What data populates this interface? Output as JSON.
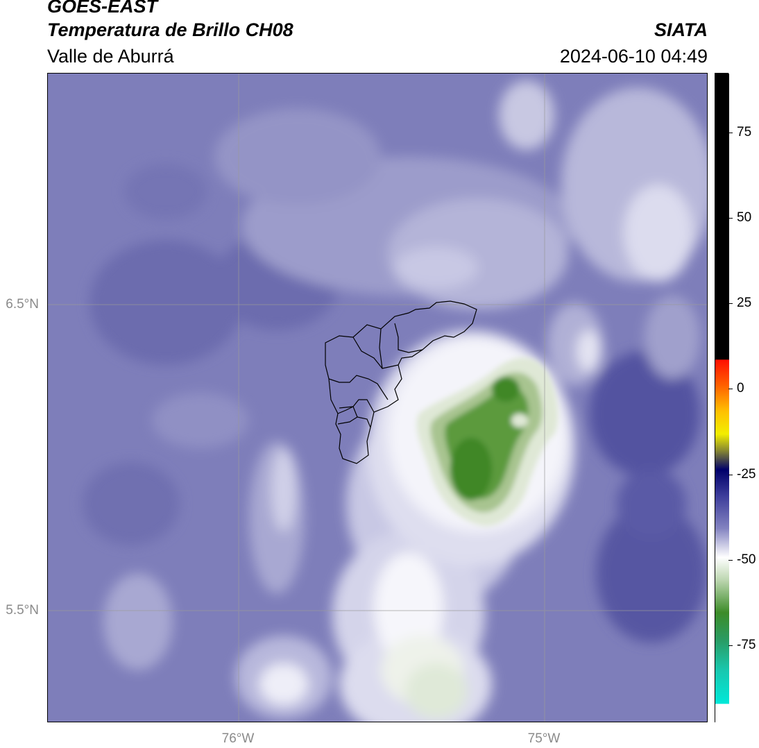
{
  "header": {
    "satellite": "GOES-EAST",
    "product": "Temperatura de Brillo CH08",
    "region": "Valle de Aburrá",
    "organization": "SIATA",
    "datetime": "2024-06-10 04:49"
  },
  "map": {
    "lat_labels": [
      "6.5°N",
      "5.5°N"
    ],
    "lon_labels": [
      "76°W",
      "75°W"
    ],
    "gridlines": true,
    "overlay": "municipality boundaries of Valle de Aburrá"
  },
  "colorbar": {
    "tick_labels": [
      "75",
      "50",
      "25",
      "0",
      "-25",
      "-50",
      "-75"
    ],
    "colors": {
      "warm": "#000000",
      "zero": "#ff2000",
      "yellow": "#ffee00",
      "navy": "#00006a",
      "slate": "#5a5aa8",
      "white": "#ffffff",
      "green": "#3c8c28",
      "cyan": "#00e8d8"
    }
  },
  "colors": {
    "background_cloud": "#7b7bb8",
    "cold_core": "#4a8c2e"
  }
}
